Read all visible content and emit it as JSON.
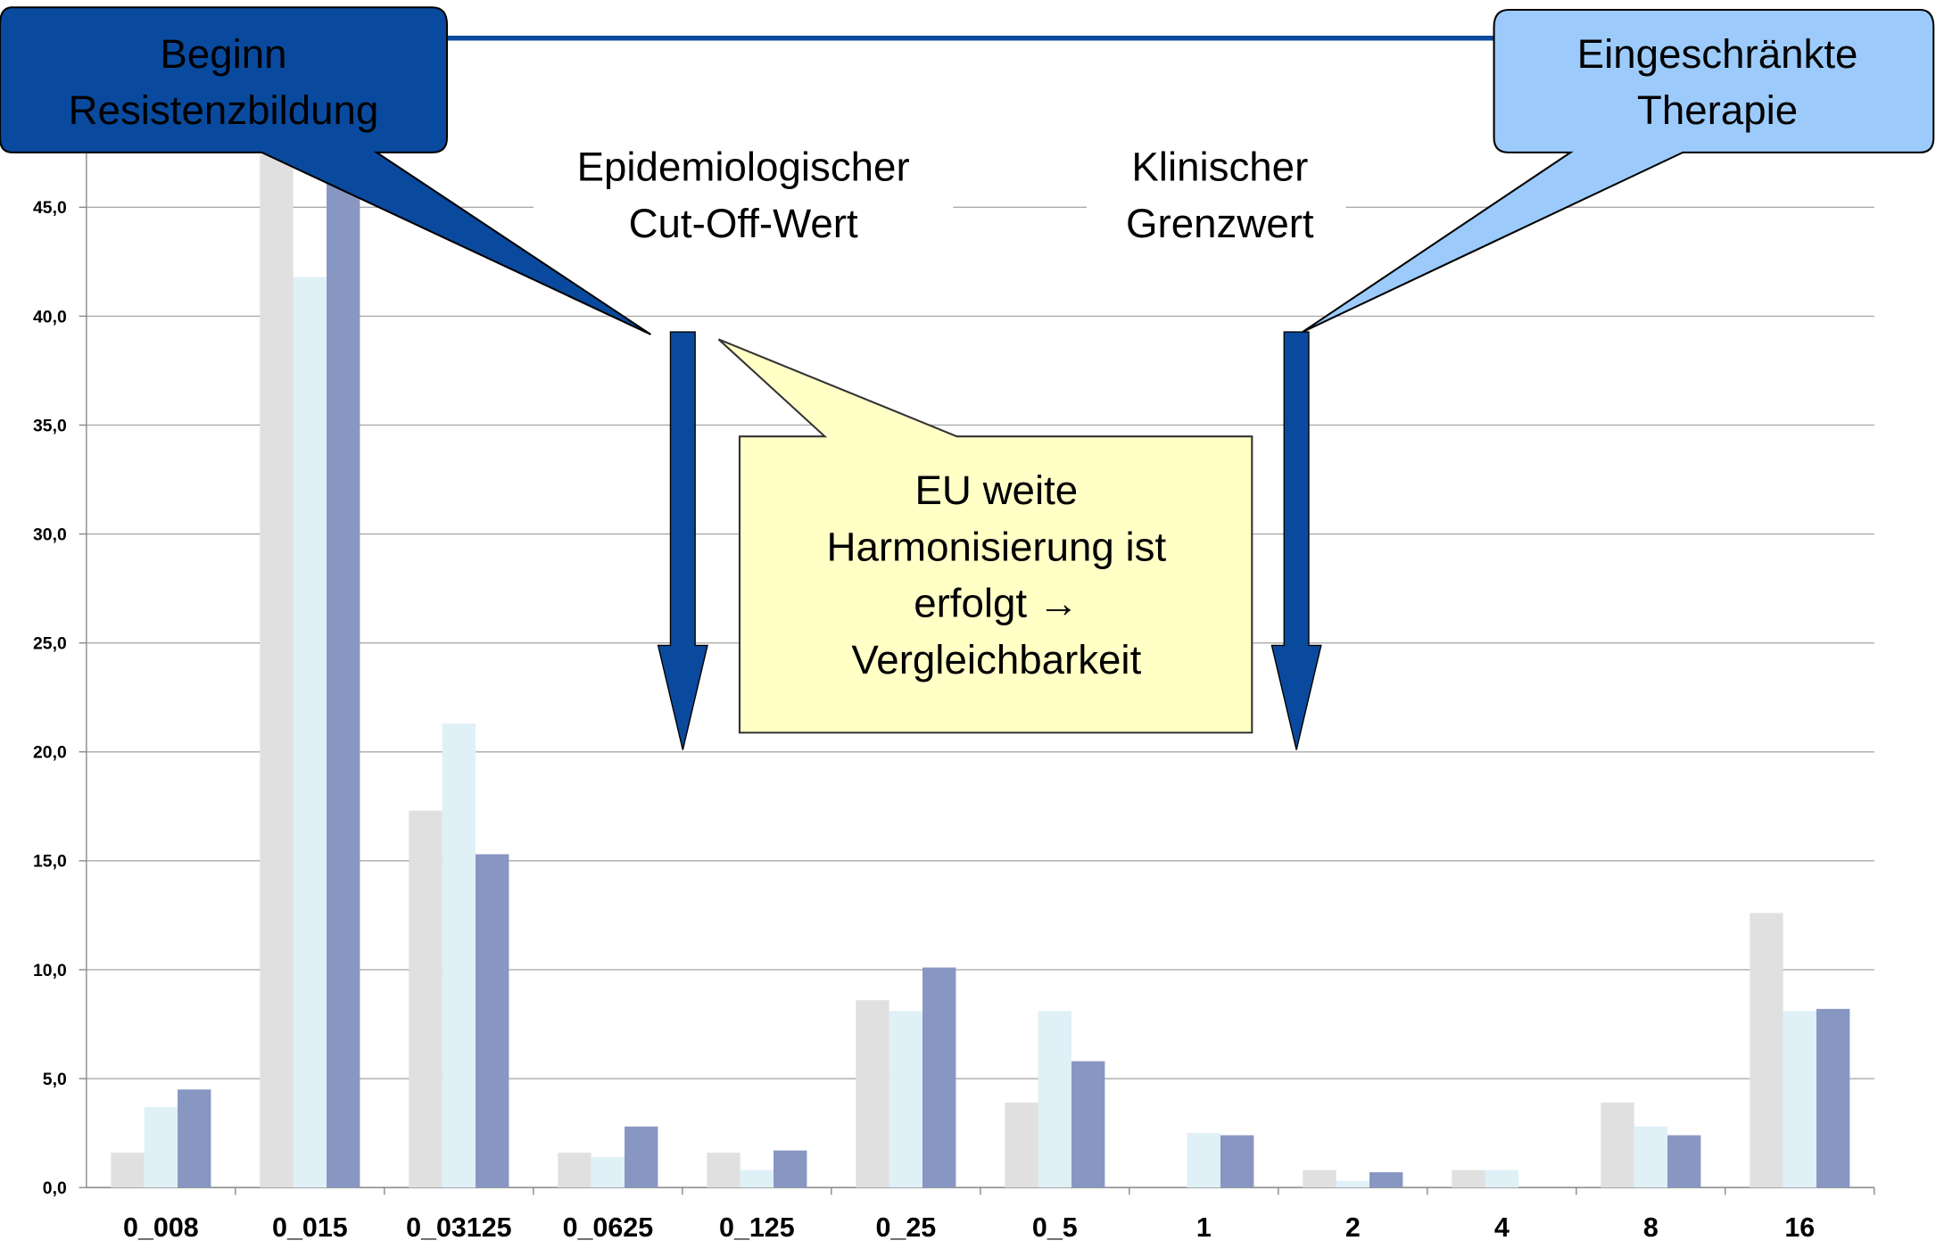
{
  "chart_data": {
    "type": "bar",
    "categories": [
      "0_008",
      "0_015",
      "0_03125",
      "0_0625",
      "0_125",
      "0_25",
      "0_5",
      "1",
      "2",
      "4",
      "8",
      "16"
    ],
    "series": [
      {
        "color": "#e0e0e0",
        "values": [
          1.6,
          48,
          17.3,
          1.6,
          1.6,
          8.6,
          3.9,
          0,
          0.8,
          0.8,
          3.9,
          12.6
        ]
      },
      {
        "color": "#dff0f7",
        "values": [
          3.7,
          41.8,
          21.3,
          1.4,
          0.8,
          8.1,
          8.1,
          2.5,
          0.3,
          0.8,
          2.8,
          8.1
        ]
      },
      {
        "color": "#8896c2",
        "values": [
          4.5,
          46.5,
          15.3,
          2.8,
          1.7,
          10.1,
          5.8,
          2.4,
          0.7,
          0,
          2.4,
          8.2
        ]
      }
    ],
    "ylim": [
      0,
      50
    ],
    "yticks": [
      {
        "value": 0,
        "label": "0,0"
      },
      {
        "value": 5,
        "label": "5,0"
      },
      {
        "value": 10,
        "label": "10,0"
      },
      {
        "value": 15,
        "label": "15,0"
      },
      {
        "value": 20,
        "label": "20,0"
      },
      {
        "value": 25,
        "label": "25,0"
      },
      {
        "value": 30,
        "label": "30,0"
      },
      {
        "value": 35,
        "label": "35,0"
      },
      {
        "value": 40,
        "label": "40,0"
      },
      {
        "value": 45,
        "label": "45,0"
      }
    ],
    "grid": true,
    "annotations": [
      {
        "lines": [
          "Beginn",
          "Resistenzbildung"
        ]
      },
      {
        "lines": [
          "Eingeschränkte",
          "Therapie"
        ]
      },
      {
        "lines": [
          "Epidemiologischer",
          "Cut-Off-Wert"
        ]
      },
      {
        "lines": [
          "Klinischer",
          "Grenzwert"
        ]
      },
      {
        "lines": [
          "EU weite",
          "Harmonisierung ist",
          "erfolgt →",
          "Vergleichbarkeit"
        ]
      }
    ]
  }
}
